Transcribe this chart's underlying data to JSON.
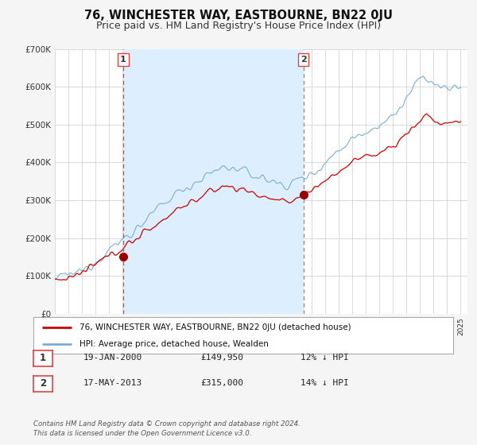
{
  "title": "76, WINCHESTER WAY, EASTBOURNE, BN22 0JU",
  "subtitle": "Price paid vs. HM Land Registry's House Price Index (HPI)",
  "ylim": [
    0,
    700000
  ],
  "yticks": [
    0,
    100000,
    200000,
    300000,
    400000,
    500000,
    600000,
    700000
  ],
  "ytick_labels": [
    "£0",
    "£100K",
    "£200K",
    "£300K",
    "£400K",
    "£500K",
    "£600K",
    "£700K"
  ],
  "xlim_start": 1995.0,
  "xlim_end": 2025.5,
  "background_color": "#f5f5f5",
  "plot_bg_color": "#ffffff",
  "shade_color": "#ddeeff",
  "grid_color": "#cccccc",
  "red_line_color": "#cc0000",
  "blue_line_color": "#7aadd4",
  "vline1_color": "#dd4444",
  "vline2_color": "#888888",
  "marker_color": "#990000",
  "marker1_x": 2000.05,
  "marker1_y": 149950,
  "marker2_x": 2013.38,
  "marker2_y": 315000,
  "vline1_x": 2000.05,
  "vline2_x": 2013.38,
  "legend_red_label": "76, WINCHESTER WAY, EASTBOURNE, BN22 0JU (detached house)",
  "legend_blue_label": "HPI: Average price, detached house, Wealden",
  "table_rows": [
    {
      "num": "1",
      "date": "19-JAN-2000",
      "price": "£149,950",
      "hpi": "12% ↓ HPI"
    },
    {
      "num": "2",
      "date": "17-MAY-2013",
      "price": "£315,000",
      "hpi": "14% ↓ HPI"
    }
  ],
  "footer_line1": "Contains HM Land Registry data © Crown copyright and database right 2024.",
  "footer_line2": "This data is licensed under the Open Government Licence v3.0.",
  "title_fontsize": 10.5,
  "subtitle_fontsize": 9
}
